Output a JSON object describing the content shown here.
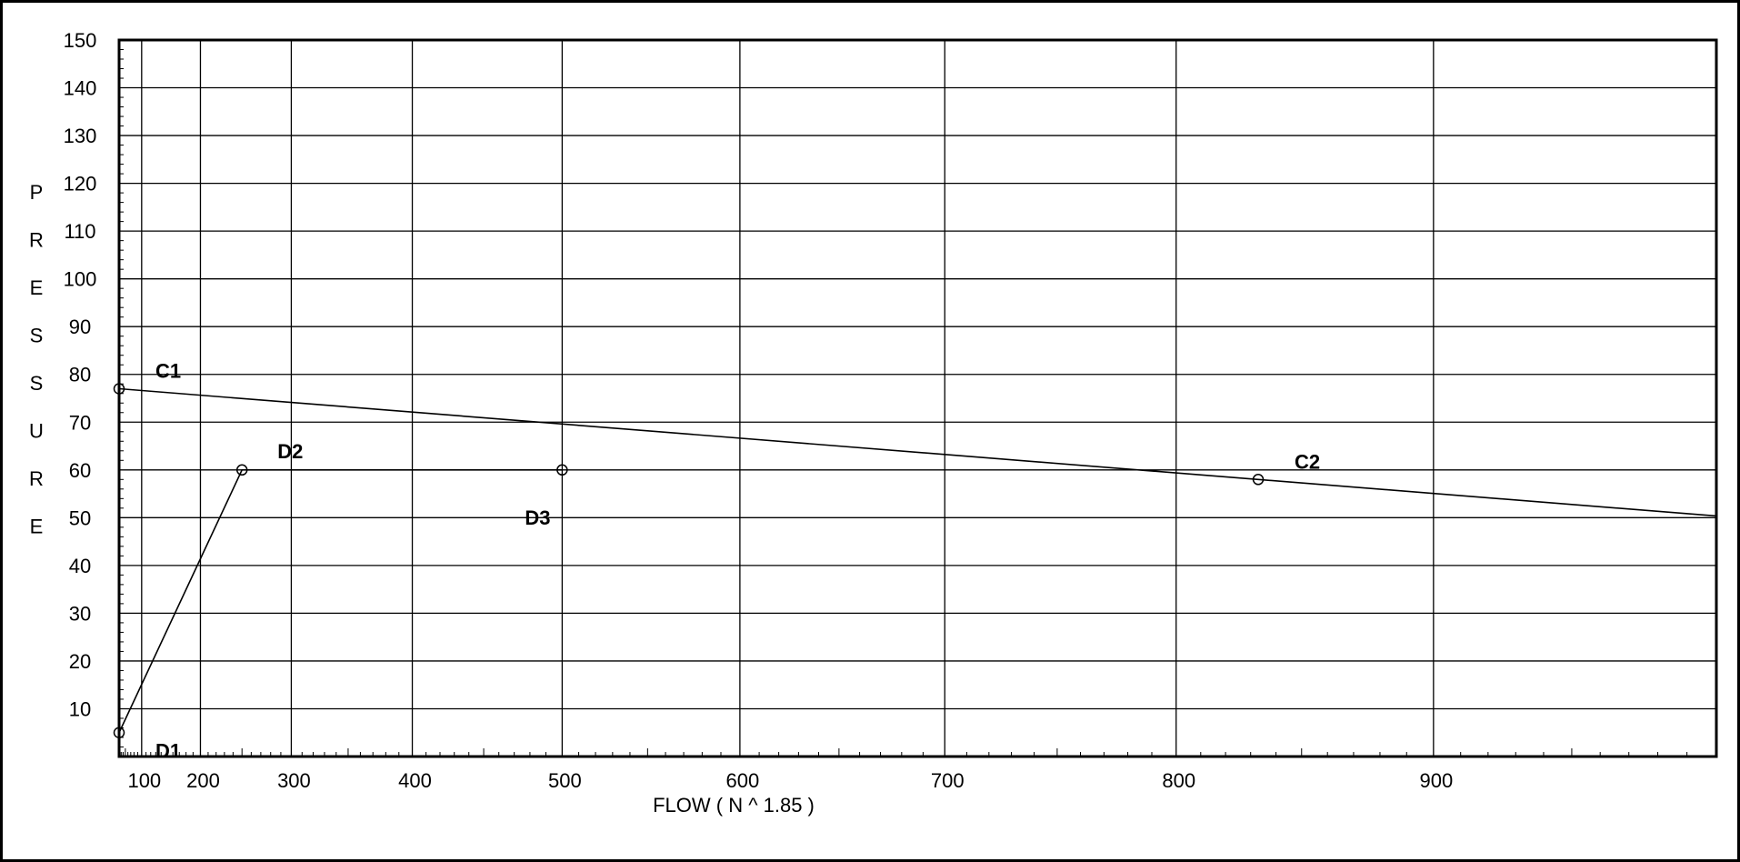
{
  "chart_data": {
    "type": "line",
    "xlabel": "FLOW ( N ^ 1.85 )",
    "ylabel_letters": [
      "P",
      "R",
      "E",
      "S",
      "S",
      "U",
      "R",
      "E"
    ],
    "x_scale": "power 1.85",
    "xlim": [
      0,
      1000
    ],
    "ylim": [
      0,
      150
    ],
    "x_tick_labels": [
      100,
      200,
      300,
      400,
      500,
      600,
      700,
      800,
      900
    ],
    "y_tick_labels": [
      10,
      20,
      30,
      40,
      50,
      60,
      70,
      80,
      90,
      100,
      110,
      120,
      130,
      140,
      150
    ],
    "grid": true,
    "series": [
      {
        "points": [
          {
            "x": 0,
            "y": 77,
            "label": "C1"
          },
          {
            "x": 833,
            "y": 58,
            "label": "C2"
          }
        ],
        "extend_to_edge": true
      },
      {
        "points": [
          {
            "x": 0,
            "y": 5,
            "label": "D1"
          },
          {
            "x": 250,
            "y": 60,
            "label": "D2"
          },
          {
            "x": 500,
            "y": 60,
            "label": "D3"
          }
        ]
      }
    ]
  }
}
